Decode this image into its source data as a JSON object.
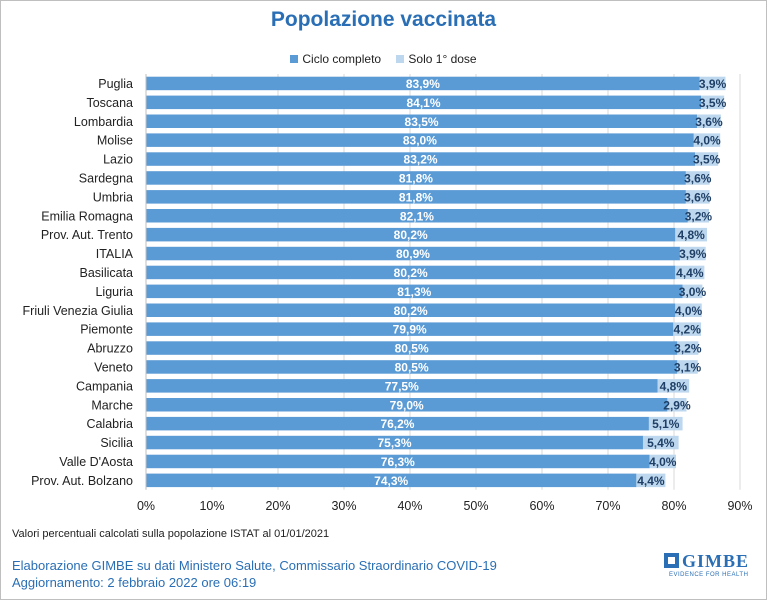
{
  "header": {
    "title": "Popolazione vaccinata"
  },
  "legend": {
    "items": [
      {
        "label": "Ciclo completo",
        "color": "#5b9bd5"
      },
      {
        "label": "Solo 1° dose",
        "color": "#bdd7ee"
      }
    ]
  },
  "chart_data": {
    "type": "bar",
    "orientation": "horizontal",
    "stacked": true,
    "title": "Popolazione vaccinata",
    "categories": [
      "Puglia",
      "Toscana",
      "Lombardia",
      "Molise",
      "Lazio",
      "Sardegna",
      "Umbria",
      "Emilia Romagna",
      "Prov. Aut. Trento",
      "ITALIA",
      "Basilicata",
      "Liguria",
      "Friuli Venezia Giulia",
      "Piemonte",
      "Abruzzo",
      "Veneto",
      "Campania",
      "Marche",
      "Calabria",
      "Sicilia",
      "Valle D'Aosta",
      "Prov. Aut. Bolzano"
    ],
    "series": [
      {
        "name": "Ciclo completo",
        "color": "#5b9bd5",
        "values": [
          83.9,
          84.1,
          83.5,
          83.0,
          83.2,
          81.8,
          81.8,
          82.1,
          80.2,
          80.9,
          80.2,
          81.3,
          80.2,
          79.9,
          80.5,
          80.5,
          77.5,
          79.0,
          76.2,
          75.3,
          76.3,
          74.3
        ],
        "labels": [
          "83,9%",
          "84,1%",
          "83,5%",
          "83,0%",
          "83,2%",
          "81,8%",
          "81,8%",
          "82,1%",
          "80,2%",
          "80,9%",
          "80,2%",
          "81,3%",
          "80,2%",
          "79,9%",
          "80,5%",
          "80,5%",
          "77,5%",
          "79,0%",
          "76,2%",
          "75,3%",
          "76,3%",
          "74,3%"
        ]
      },
      {
        "name": "Solo 1° dose",
        "color": "#bdd7ee",
        "values": [
          3.9,
          3.5,
          3.6,
          4.0,
          3.5,
          3.6,
          3.6,
          3.2,
          4.8,
          3.9,
          4.4,
          3.0,
          4.0,
          4.2,
          3.2,
          3.1,
          4.8,
          2.9,
          5.1,
          5.4,
          4.0,
          4.4
        ],
        "labels": [
          "3,9%",
          "3,5%",
          "3,6%",
          "4,0%",
          "3,5%",
          "3,6%",
          "3,6%",
          "3,2%",
          "4,8%",
          "3,9%",
          "4,4%",
          "3,0%",
          "4,0%",
          "4,2%",
          "3,2%",
          "3,1%",
          "4,8%",
          "2,9%",
          "5,1%",
          "5,4%",
          "4,0%",
          "4,4%"
        ]
      }
    ],
    "xlim": [
      0,
      90
    ],
    "xticks": [
      "0%",
      "10%",
      "20%",
      "30%",
      "40%",
      "50%",
      "60%",
      "70%",
      "80%",
      "90%"
    ],
    "grid": true,
    "legend_position": "top"
  },
  "footnote": "Valori percentuali calcolati sulla popolazione ISTAT al 01/01/2021",
  "credits": {
    "line1": "Elaborazione GIMBE su dati Ministero Salute, Commissario Straordinario COVID-19",
    "line2": "Aggiornamento: 2 febbraio 2022 ore 06:19"
  },
  "logo": {
    "name": "GIMBE",
    "tagline": "EVIDENCE FOR HEALTH"
  }
}
